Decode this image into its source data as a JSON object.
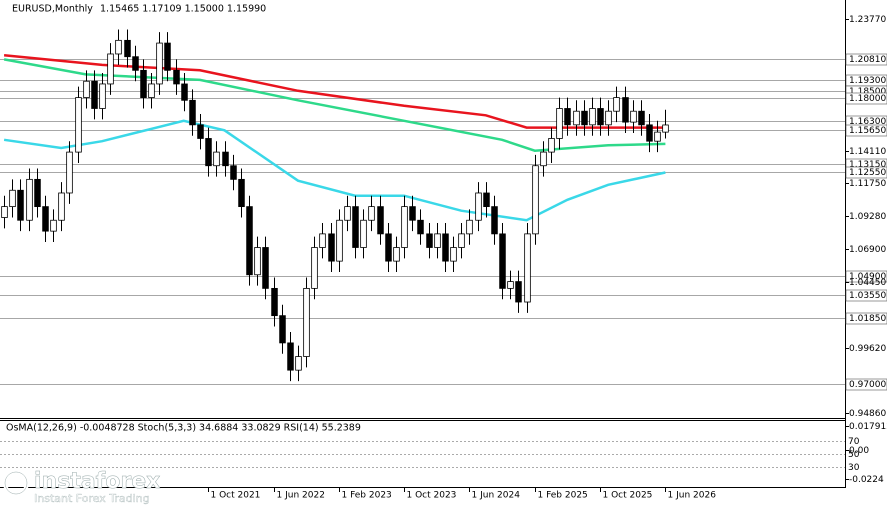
{
  "chart_data": {
    "type": "candlestick",
    "title": "EURUSD,Monthly",
    "ohlc_text": "1.15465 1.17109 1.15000 1.15990",
    "open": [
      1.092,
      1.1,
      1.112,
      1.09,
      1.12,
      1.1,
      1.082,
      1.09,
      1.11,
      1.14,
      1.18,
      1.192,
      1.172,
      1.19,
      1.212,
      1.222,
      1.21,
      1.2,
      1.18,
      1.19,
      1.22,
      1.2,
      1.19,
      1.178,
      1.16,
      1.15,
      1.13,
      1.14,
      1.13,
      1.12,
      1.1,
      1.05,
      1.07,
      1.04,
      1.02,
      1.0,
      0.98,
      0.99,
      1.04,
      1.07,
      1.08,
      1.06,
      1.09,
      1.1,
      1.07,
      1.09,
      1.1,
      1.08,
      1.06,
      1.07,
      1.1,
      1.09,
      1.08,
      1.07,
      1.08,
      1.06,
      1.07,
      1.08,
      1.09,
      1.11,
      1.1,
      1.08,
      1.04,
      1.045,
      1.03,
      1.08,
      1.13,
      1.14,
      1.15,
      1.172,
      1.16,
      1.17,
      1.16,
      1.172,
      1.16,
      1.17,
      1.18,
      1.162,
      1.17,
      1.16,
      1.148,
      1.15465
    ],
    "high": [
      1.108,
      1.12,
      1.12,
      1.128,
      1.128,
      1.108,
      1.098,
      1.118,
      1.148,
      1.188,
      1.2,
      1.2,
      1.198,
      1.22,
      1.23,
      1.23,
      1.218,
      1.208,
      1.198,
      1.228,
      1.228,
      1.208,
      1.198,
      1.186,
      1.168,
      1.158,
      1.148,
      1.148,
      1.138,
      1.128,
      1.108,
      1.078,
      1.078,
      1.048,
      1.028,
      1.008,
      0.998,
      1.048,
      1.078,
      1.088,
      1.088,
      1.098,
      1.108,
      1.108,
      1.098,
      1.108,
      1.108,
      1.088,
      1.078,
      1.108,
      1.108,
      1.098,
      1.088,
      1.088,
      1.088,
      1.078,
      1.088,
      1.098,
      1.118,
      1.118,
      1.108,
      1.088,
      1.053,
      1.053,
      1.088,
      1.138,
      1.148,
      1.158,
      1.18,
      1.18,
      1.178,
      1.178,
      1.18,
      1.18,
      1.178,
      1.188,
      1.188,
      1.178,
      1.178,
      1.168,
      1.163,
      1.17109
    ],
    "low": [
      1.084,
      1.092,
      1.082,
      1.082,
      1.092,
      1.074,
      1.074,
      1.082,
      1.102,
      1.132,
      1.172,
      1.164,
      1.164,
      1.182,
      1.204,
      1.202,
      1.192,
      1.172,
      1.172,
      1.182,
      1.192,
      1.182,
      1.17,
      1.152,
      1.142,
      1.122,
      1.122,
      1.122,
      1.112,
      1.092,
      1.042,
      1.042,
      1.032,
      1.012,
      0.992,
      0.972,
      0.972,
      0.982,
      1.032,
      1.062,
      1.052,
      1.052,
      1.082,
      1.062,
      1.062,
      1.082,
      1.072,
      1.052,
      1.052,
      1.062,
      1.082,
      1.072,
      1.062,
      1.062,
      1.052,
      1.052,
      1.062,
      1.072,
      1.082,
      1.092,
      1.072,
      1.032,
      1.032,
      1.022,
      1.022,
      1.072,
      1.122,
      1.132,
      1.142,
      1.152,
      1.152,
      1.152,
      1.152,
      1.152,
      1.152,
      1.162,
      1.154,
      1.154,
      1.152,
      1.14,
      1.14,
      1.15
    ],
    "close": [
      1.1,
      1.112,
      1.09,
      1.12,
      1.1,
      1.082,
      1.09,
      1.11,
      1.14,
      1.18,
      1.192,
      1.172,
      1.19,
      1.212,
      1.222,
      1.21,
      1.2,
      1.18,
      1.19,
      1.22,
      1.2,
      1.19,
      1.178,
      1.16,
      1.15,
      1.13,
      1.14,
      1.13,
      1.12,
      1.1,
      1.05,
      1.07,
      1.04,
      1.02,
      1.0,
      0.98,
      0.99,
      1.04,
      1.07,
      1.08,
      1.06,
      1.09,
      1.1,
      1.07,
      1.09,
      1.1,
      1.08,
      1.06,
      1.07,
      1.1,
      1.09,
      1.08,
      1.07,
      1.08,
      1.06,
      1.07,
      1.08,
      1.09,
      1.11,
      1.1,
      1.08,
      1.04,
      1.045,
      1.03,
      1.08,
      1.13,
      1.14,
      1.15,
      1.172,
      1.16,
      1.17,
      1.16,
      1.172,
      1.16,
      1.17,
      1.18,
      1.162,
      1.17,
      1.16,
      1.148,
      1.15465,
      1.1599
    ],
    "series": [
      {
        "color": "#e8141e",
        "x": [
          0,
          12,
          24,
          36,
          49,
          59,
          64,
          81
        ],
        "values": [
          1.211,
          1.204,
          1.2,
          1.185,
          1.174,
          1.167,
          1.158,
          1.158
        ]
      },
      {
        "color": "#2ed98a",
        "x": [
          0,
          10,
          24,
          36,
          49,
          61,
          65,
          74,
          81
        ],
        "values": [
          1.208,
          1.197,
          1.193,
          1.178,
          1.163,
          1.149,
          1.141,
          1.145,
          1.146
        ]
      },
      {
        "color": "#3ad8e8",
        "x": [
          0,
          7,
          12,
          22,
          27,
          36,
          43,
          49,
          56,
          64,
          69,
          74,
          81
        ],
        "values": [
          1.149,
          1.143,
          1.148,
          1.163,
          1.156,
          1.119,
          1.108,
          1.108,
          1.097,
          1.09,
          1.105,
          1.116,
          1.125
        ]
      }
    ],
    "xticks": [
      {
        "value": 25,
        "label": "1 Oct 2021"
      },
      {
        "value": 33,
        "label": "1 Jun 2022"
      },
      {
        "value": 41,
        "label": "1 Feb 2023"
      },
      {
        "value": 49,
        "label": "1 Oct 2023"
      },
      {
        "value": 57,
        "label": "1 Jun 2024"
      },
      {
        "value": 65,
        "label": "1 Feb 2025"
      },
      {
        "value": 73,
        "label": "1 Oct 2025"
      },
      {
        "value": 81,
        "label": "1 Jun 2026"
      }
    ],
    "xlim": [
      -0.5,
      103
    ],
    "ylim": [
      0.9449,
      1.2516
    ],
    "yticks": [
      {
        "value": 1.2377,
        "label": "1.23770"
      },
      {
        "value": 1.1411,
        "label": "1.14110"
      },
      {
        "value": 1.1175,
        "label": "1.11750"
      },
      {
        "value": 1.0928,
        "label": "1.09280"
      },
      {
        "value": 1.069,
        "label": "1.06900"
      },
      {
        "value": 1.0445,
        "label": "1.04450"
      },
      {
        "value": 0.9962,
        "label": "0.99620"
      },
      {
        "value": 0.9486,
        "label": "0.94860"
      }
    ],
    "price_levels": [
      {
        "value": 1.2081,
        "label": "1.20810"
      },
      {
        "value": 1.193,
        "label": "1.19300"
      },
      {
        "value": 1.185,
        "label": "1.18500"
      },
      {
        "value": 1.18,
        "label": "1.18000"
      },
      {
        "value": 1.163,
        "label": "1.16300"
      },
      {
        "value": 1.1565,
        "label": "1.15650"
      },
      {
        "value": 1.1315,
        "label": "1.13150"
      },
      {
        "value": 1.1255,
        "label": "1.12550"
      },
      {
        "value": 1.049,
        "label": "1.04900"
      },
      {
        "value": 1.0355,
        "label": "1.03550"
      },
      {
        "value": 1.0185,
        "label": "1.01850"
      },
      {
        "value": 0.97,
        "label": "0.97000"
      }
    ],
    "oscillator": {
      "title": "OsMA(12,26,9) -0.0048728 Stoch(5,3,3) 34.6884 33.0829 RSI(14) 55.2389",
      "ylim": [
        -0.0284,
        0.0216
      ],
      "yticks": [
        {
          "value": 0.017912,
          "label": "0.017912"
        },
        {
          "value": 0,
          "label": "0.00"
        },
        {
          "value": -0.0224,
          "label": "-0.0224"
        }
      ],
      "stoch_lim": [
        0,
        100
      ],
      "stoch_levels": [
        70,
        50,
        30
      ]
    }
  },
  "logo": {
    "name": "instaforex",
    "tagline": "Instant Forex Trading"
  }
}
